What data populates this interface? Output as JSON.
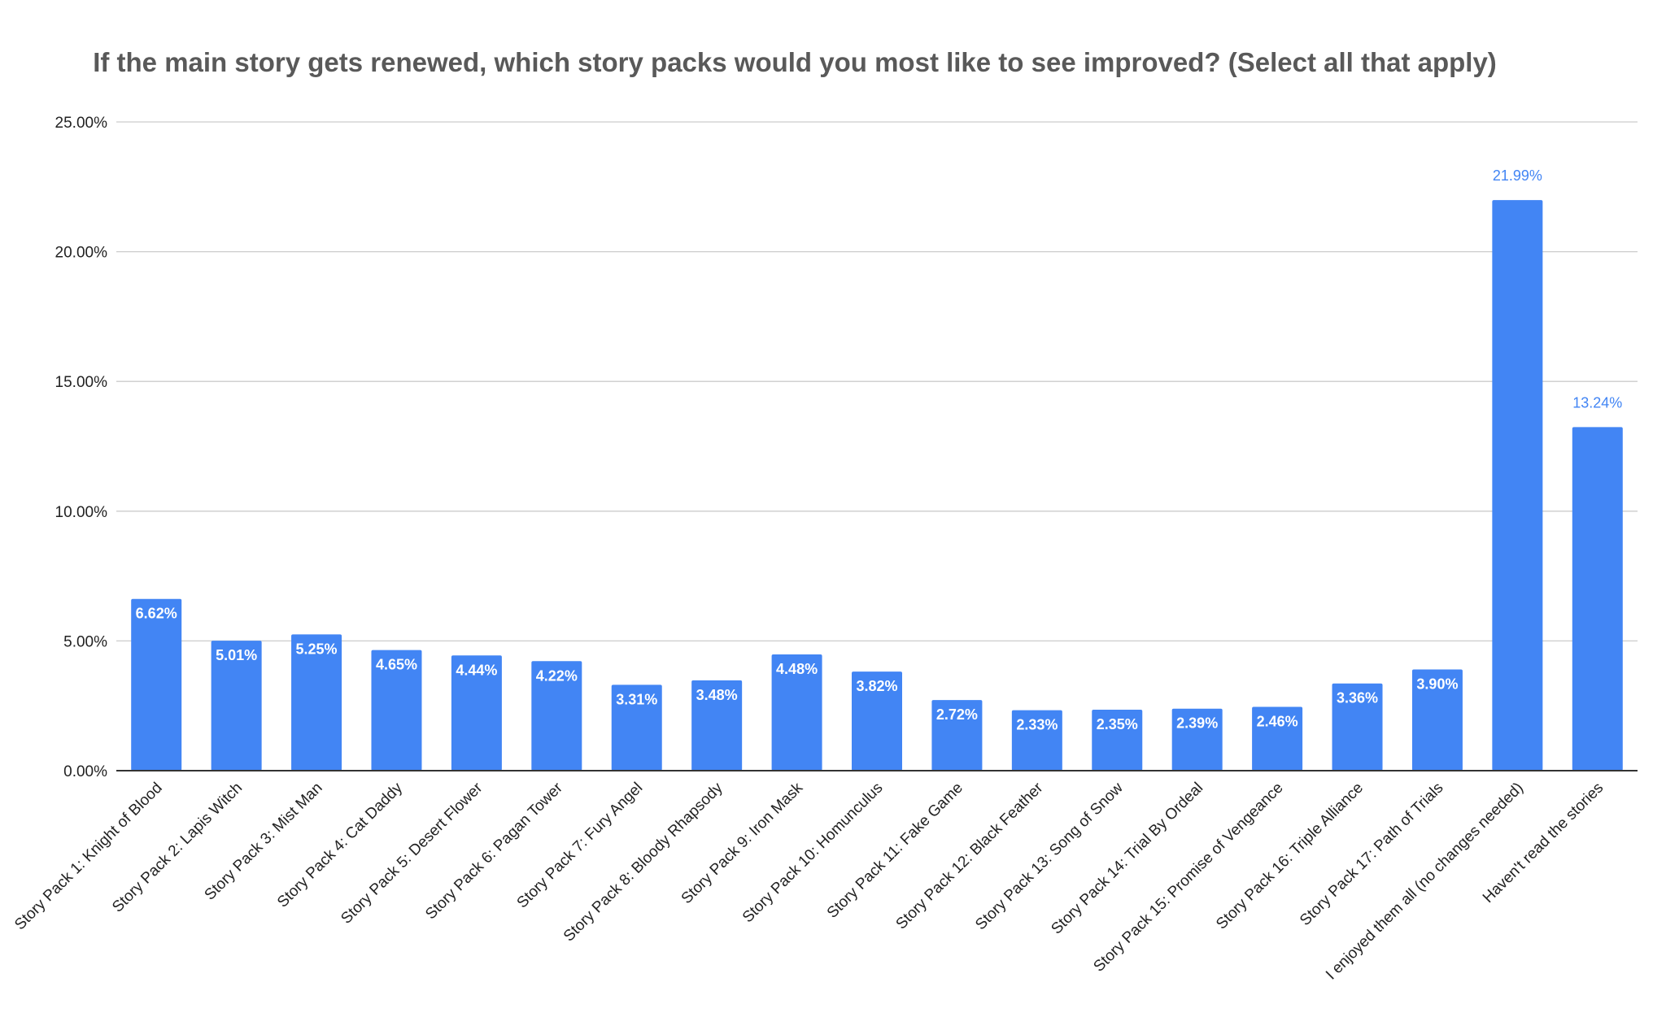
{
  "chart_data": {
    "type": "bar",
    "title": "If the main story gets renewed, which story packs would you most like to see improved? (Select all that apply)",
    "xlabel": "",
    "ylabel": "",
    "ylim": [
      0,
      25
    ],
    "yticks": [
      "0.00%",
      "5.00%",
      "10.00%",
      "15.00%",
      "20.00%",
      "25.00%"
    ],
    "grid": true,
    "legend": "none",
    "bar_color": "#4285F4",
    "inside_label_color": "#ffffff",
    "outside_label_color": "#4285F4",
    "categories": [
      "Story Pack 1: Knight of Blood",
      "Story Pack 2: Lapis Witch",
      "Story Pack 3: Mist Man",
      "Story Pack 4: Cat Daddy",
      "Story Pack 5: Desert Flower",
      "Story Pack 6: Pagan Tower",
      "Story Pack 7: Fury Angel",
      "Story Pack 8: Bloody Rhapsody",
      "Story Pack 9: Iron Mask",
      "Story Pack 10: Homunculus",
      "Story Pack 11: Fake Game",
      "Story Pack 12: Black Feather",
      "Story Pack 13: Song of Snow",
      "Story Pack 14: Trial By Ordeal",
      "Story Pack 15: Promise of Vengeance",
      "Story Pack 16: Triple Alliance",
      "Story Pack 17: Path of Trials",
      "I enjoyed them all (no changes needed)",
      "Haven't read the stories"
    ],
    "values": [
      6.62,
      5.01,
      5.25,
      4.65,
      4.44,
      4.22,
      3.31,
      3.48,
      4.48,
      3.82,
      2.72,
      2.33,
      2.35,
      2.39,
      2.46,
      3.36,
      3.9,
      21.99,
      13.24
    ],
    "data_labels": [
      "6.62%",
      "5.01%",
      "5.25%",
      "4.65%",
      "4.44%",
      "4.22%",
      "3.31%",
      "3.48%",
      "4.48%",
      "3.82%",
      "2.72%",
      "2.33%",
      "2.35%",
      "2.39%",
      "2.46%",
      "3.36%",
      "3.90%",
      "21.99%",
      "13.24%"
    ]
  }
}
